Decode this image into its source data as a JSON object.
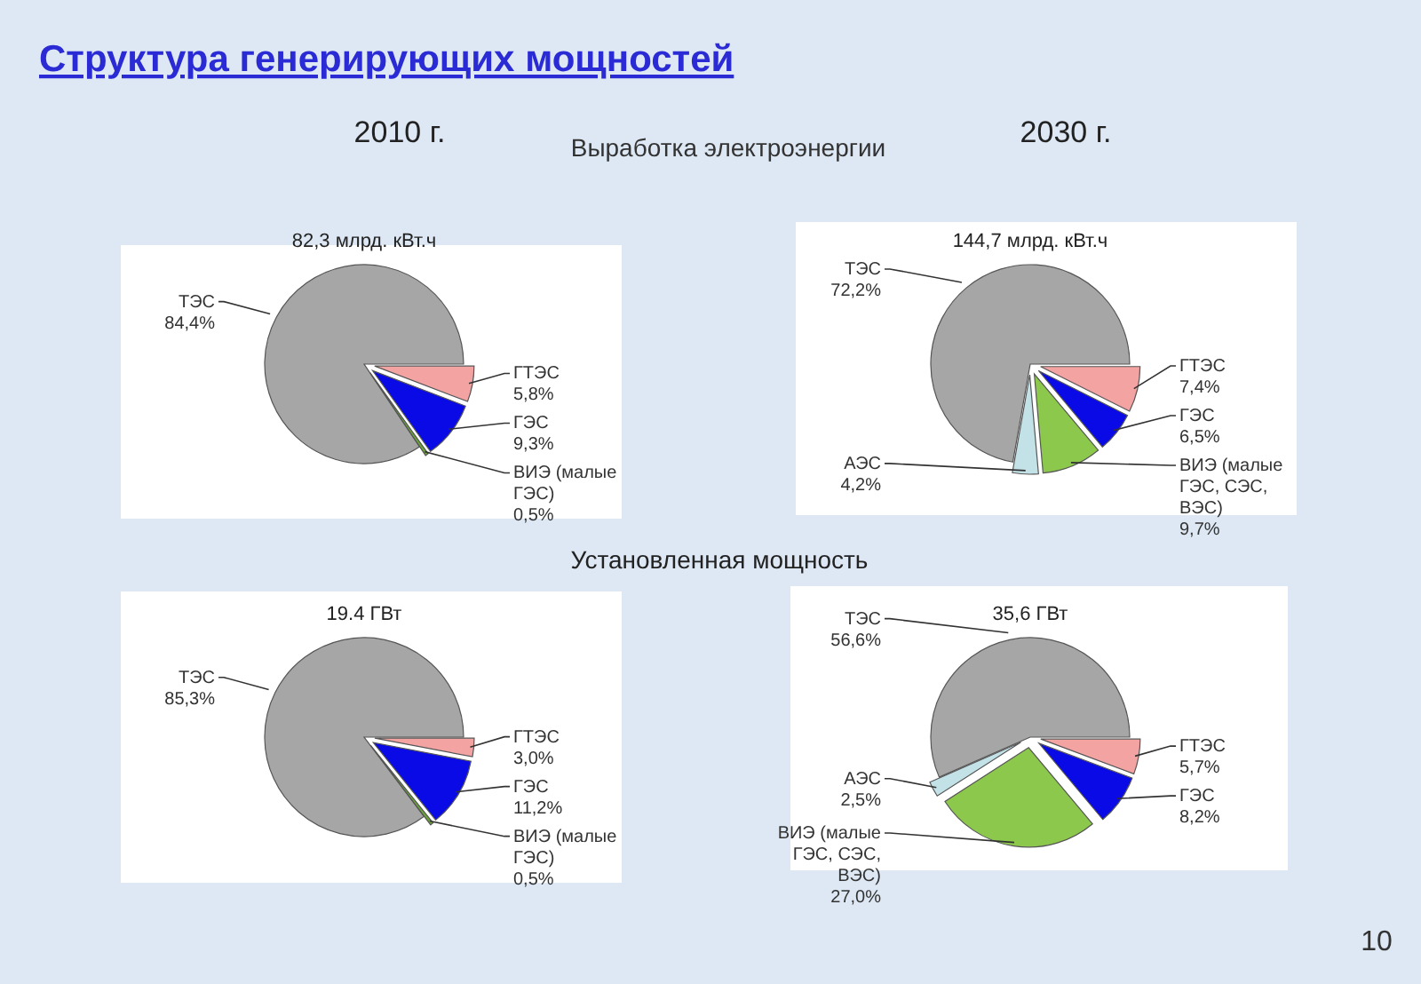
{
  "chart_data": [
    {
      "type": "pie",
      "title": "2010 г.",
      "subtitle": "82,3 млрд. кВт.ч",
      "annotations": [
        "Структура генерирующих мощностей",
        "Выработка электроэнергии"
      ],
      "categories": [
        "ТЭС",
        "ГТЭС",
        "ГЭС",
        "ВИЭ (малые ГЭС)"
      ],
      "values": [
        84.4,
        5.8,
        9.3,
        0.5
      ],
      "value_labels": [
        "84,4%",
        "5,8%",
        "9,3%",
        "0,5%"
      ],
      "colors": [
        "#a6a6a6",
        "#f4a3a3",
        "#0a0ae6",
        "#6aa436"
      ]
    },
    {
      "type": "pie",
      "title": "2030 г.",
      "subtitle": "144,7 млрд. кВт.ч",
      "categories": [
        "ТЭС",
        "ГТЭС",
        "ГЭС",
        "ВИЭ (малые ГЭС, СЭС, ВЭС)",
        "АЭС"
      ],
      "values": [
        72.2,
        7.4,
        6.5,
        9.7,
        4.2
      ],
      "value_labels": [
        "72,2%",
        "7,4%",
        "6,5%",
        "9,7%",
        "4,2%"
      ],
      "colors": [
        "#a6a6a6",
        "#f4a3a3",
        "#0a0ae6",
        "#8cc84b",
        "#c3e2e8"
      ]
    },
    {
      "type": "pie",
      "title": "Установленная мощность",
      "subtitle": "19.4 ГВт",
      "categories": [
        "ТЭС",
        "ГТЭС",
        "ГЭС",
        "ВИЭ (малые ГЭС)"
      ],
      "values": [
        85.3,
        3.0,
        11.2,
        0.5
      ],
      "value_labels": [
        "85,3%",
        "3,0%",
        "11,2%",
        "0,5%"
      ],
      "colors": [
        "#a6a6a6",
        "#f4a3a3",
        "#0a0ae6",
        "#6aa436"
      ]
    },
    {
      "type": "pie",
      "subtitle": "35,6 ГВт",
      "annotations": [
        "10"
      ],
      "categories": [
        "ТЭС",
        "ГТЭС",
        "ГЭС",
        "ВИЭ (малые ГЭС, СЭС, ВЭС)",
        "АЭС"
      ],
      "values": [
        56.6,
        5.7,
        8.2,
        27.0,
        2.5
      ],
      "value_labels": [
        "56,6%",
        "5,7%",
        "8,2%",
        "27,0%",
        "2,5%"
      ],
      "colors": [
        "#a6a6a6",
        "#f4a3a3",
        "#0a0ae6",
        "#8cc84b",
        "#c3e2e8"
      ]
    }
  ]
}
